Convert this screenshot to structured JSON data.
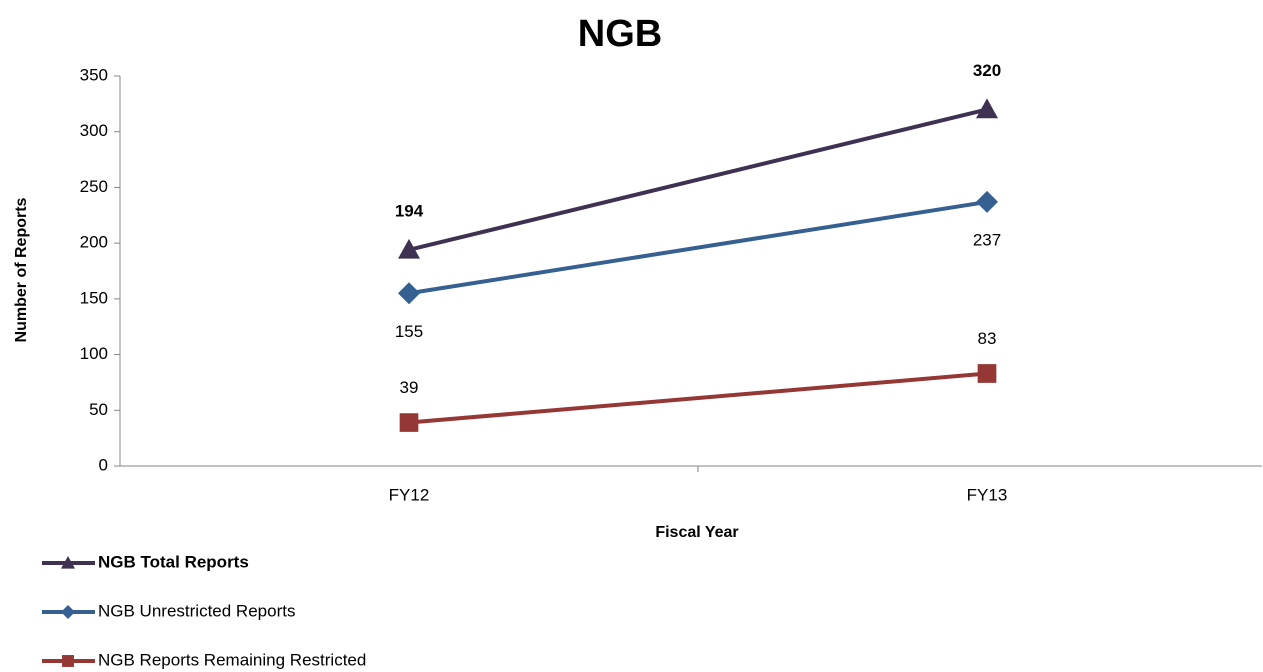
{
  "chart_data": {
    "type": "line",
    "title": "NGB",
    "xlabel": "Fiscal Year",
    "ylabel": "Number of Reports",
    "categories": [
      "FY12",
      "FY13"
    ],
    "series": [
      {
        "name": "NGB Total Reports",
        "color": "#3f3151",
        "marker": "triangle",
        "values": [
          194,
          320
        ]
      },
      {
        "name": "NGB Unrestricted Reports",
        "color": "#376092",
        "marker": "diamond",
        "values": [
          155,
          237
        ]
      },
      {
        "name": "NGB Reports Remaining Restricted",
        "color": "#953735",
        "marker": "square",
        "values": [
          39,
          83
        ]
      }
    ],
    "ylim": [
      0,
      350
    ],
    "yticks": [
      0,
      50,
      100,
      150,
      200,
      250,
      300,
      350
    ],
    "grid": false,
    "legend": "bottom-left"
  }
}
